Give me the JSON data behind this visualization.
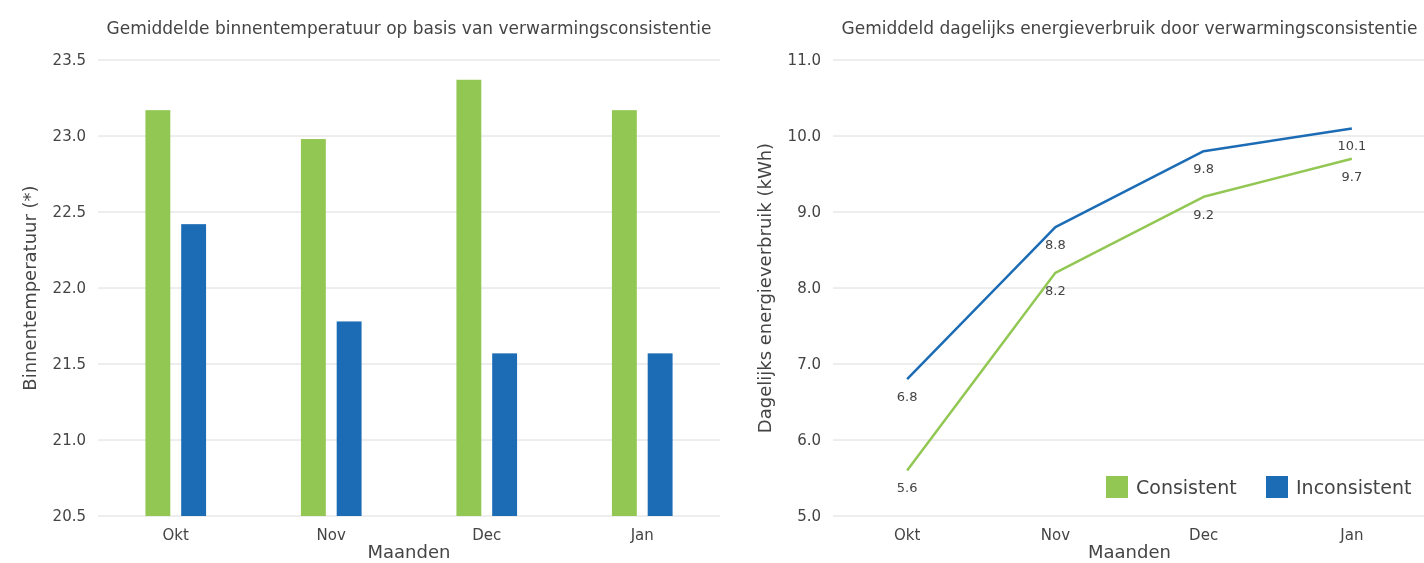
{
  "chart_data": [
    {
      "type": "bar",
      "title": "Gemiddelde binnentemperatuur op basis van verwarmingsconsistentie",
      "xlabel": "Maanden",
      "ylabel": "Binnentemperatuur (*)",
      "categories": [
        "Okt",
        "Nov",
        "Dec",
        "Jan"
      ],
      "series": [
        {
          "color": "#93c753",
          "values": [
            23.17,
            22.98,
            23.37,
            23.17
          ]
        },
        {
          "color": "#1c6bb5",
          "values": [
            22.42,
            21.78,
            21.57,
            21.57
          ]
        }
      ],
      "ylim": [
        20.5,
        23.5
      ],
      "yticks": [
        20.5,
        {
          "value": 21,
          "label": "21.0"
        },
        21.5,
        {
          "value": 22,
          "label": "22.0"
        },
        22.5,
        {
          "value": 23,
          "label": "23.0"
        },
        23.5
      ],
      "grid": "y",
      "legend": false
    },
    {
      "type": "line",
      "title": "Gemiddeld dagelijks energieverbruik door verwarmingsconsistentie",
      "xlabel": "Maanden",
      "ylabel": "Dagelijks energieverbruik (kWh)",
      "categories": [
        "Okt",
        "Nov",
        "Dec",
        "Jan"
      ],
      "series": [
        {
          "name": "Consistent",
          "color": "#93c753",
          "values": [
            5.6,
            8.2,
            9.2,
            9.7
          ]
        },
        {
          "name": "Inconsistent",
          "color": "#1c6bb5",
          "values": [
            6.8,
            8.8,
            9.8,
            10.1
          ]
        }
      ],
      "ylim": [
        5.0,
        11.0
      ],
      "yticks": [
        {
          "value": 5,
          "label": "5.0"
        },
        {
          "value": 6,
          "label": "6.0"
        },
        {
          "value": 7,
          "label": "7.0"
        },
        {
          "value": 8,
          "label": "8.0"
        },
        {
          "value": 9,
          "label": "9.0"
        },
        {
          "value": 10,
          "label": "10.0"
        },
        {
          "value": 11,
          "label": "11.0"
        }
      ],
      "grid": "y",
      "legend": "bottom right",
      "data_labels": true,
      "marker": "none"
    }
  ]
}
